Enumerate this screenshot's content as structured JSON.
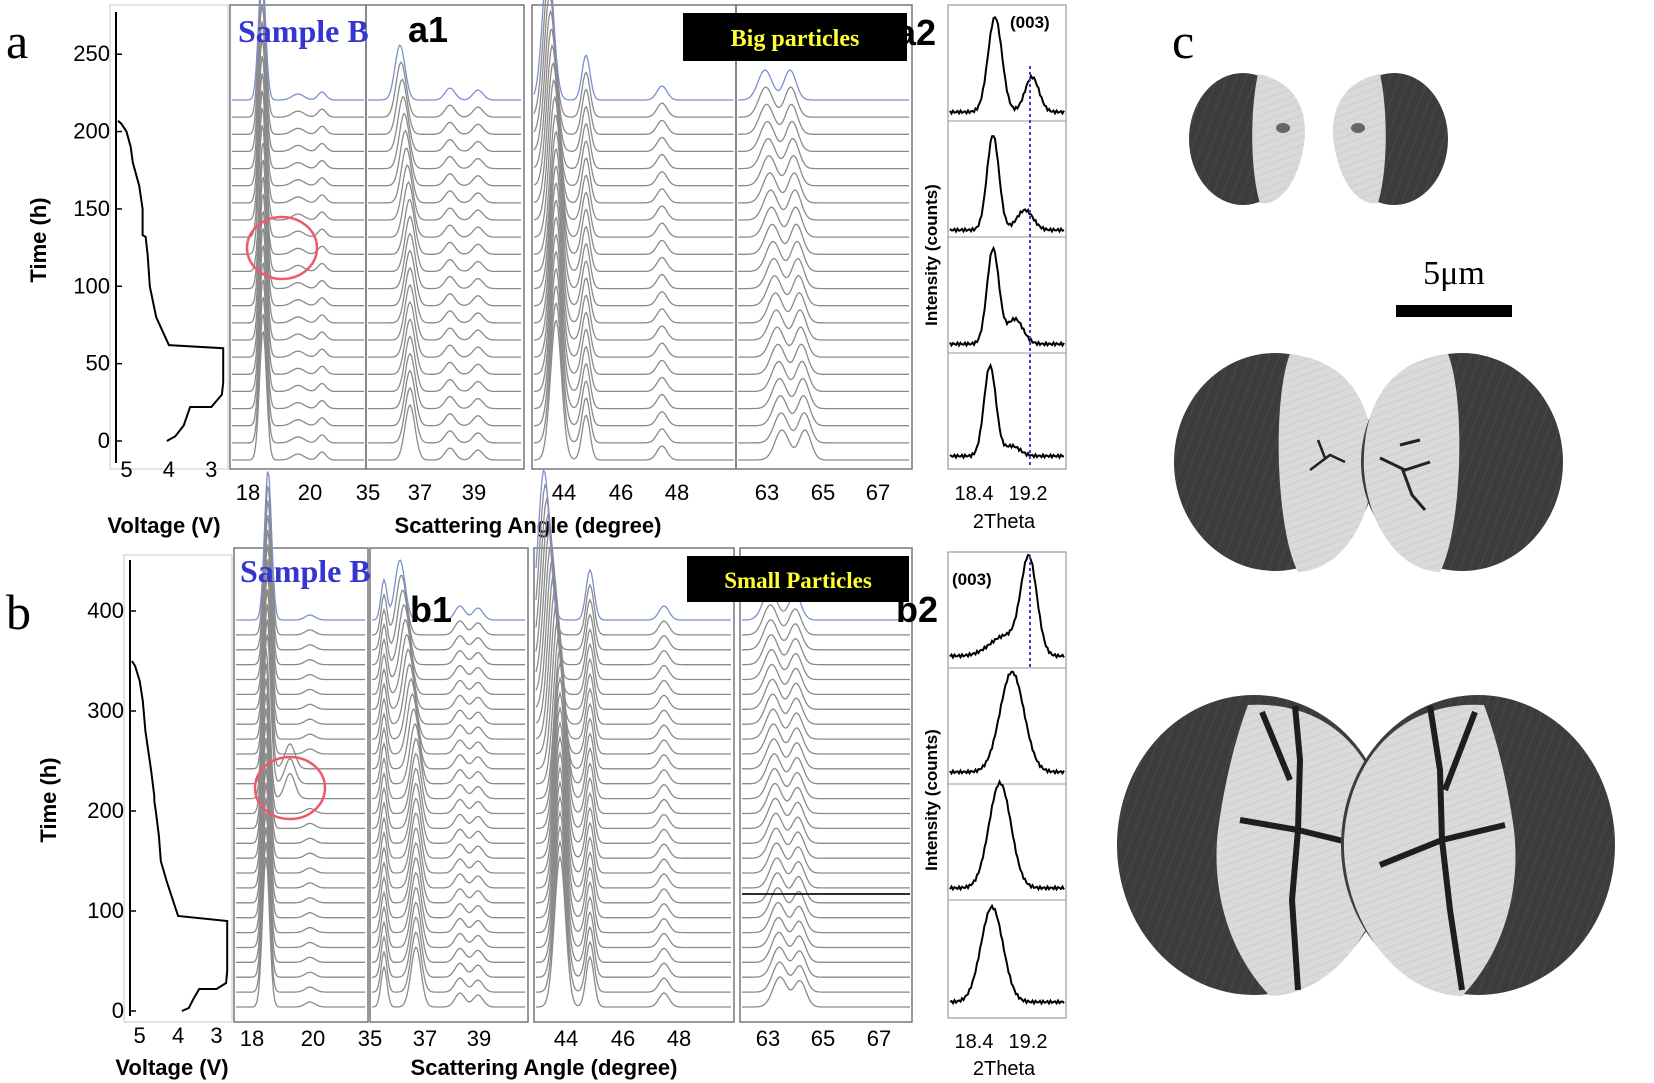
{
  "panel_letters": {
    "a": "a",
    "b": "b",
    "c": "c"
  },
  "panel_a": {
    "sample_label": "Sample B",
    "subpanel_1": "a1",
    "subpanel_2": "a2",
    "badge": "Big particles",
    "voltage_axis": {
      "label": "Voltage (V)",
      "ticks": [
        "5",
        "4",
        "3"
      ],
      "vmin": 2.7,
      "vmax": 5.2
    },
    "time_axis": {
      "label": "Time (h)",
      "ticks": [
        "0",
        "50",
        "100",
        "150",
        "200",
        "250"
      ],
      "max": 265
    },
    "angle_axis_label": "Scattering Angle (degree)",
    "angle_ticks": [
      [
        "18",
        "20",
        "35"
      ],
      [
        "37",
        "39"
      ],
      [
        "44",
        "46",
        "48"
      ],
      [
        "63",
        "65",
        "67"
      ]
    ],
    "inset_label": "(003)",
    "inset_x_ticks": [
      "18.4",
      "19.2"
    ],
    "inset_x_label": "2Theta",
    "inset_y_label": "Intensity (counts)"
  },
  "panel_b": {
    "sample_label": "Sample B",
    "subpanel_1": "b1",
    "subpanel_2": "b2",
    "badge": "Small Particles",
    "voltage_axis": {
      "label": "Voltage (V)",
      "ticks": [
        "5",
        "4",
        "3"
      ],
      "vmin": 2.7,
      "vmax": 5.2
    },
    "time_axis": {
      "label": "Time (h)",
      "ticks": [
        "0",
        "100",
        "200",
        "300",
        "400"
      ],
      "max": 440
    },
    "angle_axis_label": "Scattering Angle (degree)",
    "angle_ticks": [
      [
        "18",
        "20",
        "35"
      ],
      [
        "37",
        "39"
      ],
      [
        "44",
        "46",
        "48"
      ],
      [
        "63",
        "65",
        "67"
      ]
    ],
    "inset_label": "(003)",
    "inset_x_ticks": [
      "18.4",
      "19.2"
    ],
    "inset_x_label": "2Theta",
    "inset_y_label": "Intensity (counts)"
  },
  "panel_c": {
    "scale_bar_label": "5μm"
  },
  "colors": {
    "ink": "#000000",
    "trace": "#8a8a8a",
    "sample_label": "#3535d0",
    "badge_bg": "#000000",
    "badge_text": "#ffff33",
    "circle": "#ee5a6a",
    "dashed_line": "#4040c8",
    "particle_dark": "#3c3c3c",
    "particle_light": "#dedede"
  },
  "chart_data": [
    {
      "type": "line",
      "title": "",
      "xlabel": "Voltage (V)",
      "ylabel": "Time (h)",
      "xlim": [
        5.2,
        2.7
      ],
      "ylim": [
        0,
        265
      ],
      "series": [
        {
          "x": [
            4.05,
            3.85,
            3.65,
            3.5,
            3.0,
            2.75,
            2.72,
            2.72,
            2.72,
            4.0,
            4.3,
            4.45,
            4.5,
            4.55,
            4.62,
            4.62,
            4.7,
            4.85,
            4.9,
            5.0,
            5.12,
            5.2
          ],
          "y": [
            0,
            3,
            10,
            22,
            22,
            30,
            38,
            45,
            60,
            62,
            80,
            100,
            120,
            132,
            133,
            150,
            165,
            180,
            190,
            200,
            205,
            207
          ]
        }
      ]
    },
    {
      "type": "line",
      "title": "",
      "xlabel": "Voltage (V)",
      "ylabel": "Time (h)",
      "xlim": [
        5.2,
        2.7
      ],
      "ylim": [
        0,
        440
      ],
      "series": [
        {
          "x": [
            3.9,
            3.72,
            3.6,
            3.45,
            3.0,
            2.75,
            2.72,
            2.72,
            2.72,
            4.0,
            4.3,
            4.45,
            4.5,
            4.58,
            4.62,
            4.62,
            4.7,
            4.85,
            4.92,
            5.0,
            5.12,
            5.2
          ],
          "y": [
            0,
            3,
            12,
            22,
            22,
            28,
            40,
            60,
            90,
            95,
            130,
            150,
            175,
            200,
            210,
            215,
            240,
            280,
            310,
            330,
            345,
            350
          ]
        }
      ]
    }
  ]
}
